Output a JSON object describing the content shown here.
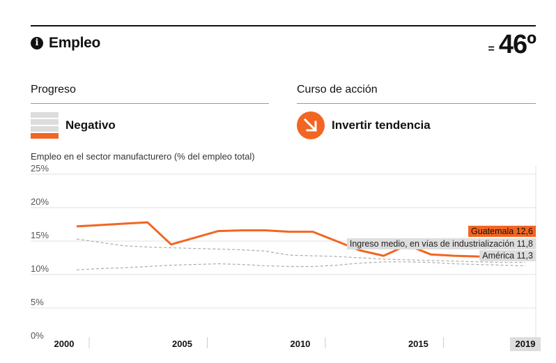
{
  "header": {
    "title": "Empleo",
    "info_icon": "info-icon",
    "rank_prefix": "=",
    "rank": "46º"
  },
  "progress": {
    "label": "Progreso",
    "value": "Negativo",
    "bars_total": 4,
    "bars_filled": 1
  },
  "action": {
    "label": "Curso de acción",
    "value": "Invertir tendencia",
    "icon": "arrow-down-right-icon"
  },
  "colors": {
    "accent": "#f26522",
    "reference": "#aaaaaa",
    "label_bg": "#dddddd"
  },
  "chart_data": {
    "type": "line",
    "title": "Empleo en el sector manufacturero (% del empleo total)",
    "ylim": [
      0,
      25
    ],
    "yticks": [
      0,
      5,
      10,
      15,
      20,
      25
    ],
    "ytick_labels": [
      "0%",
      "5%",
      "10%",
      "15%",
      "20%",
      "25%"
    ],
    "xlim": [
      2000,
      2019
    ],
    "xticks": [
      2000,
      2005,
      2010,
      2015,
      2019
    ],
    "xtick_labels": [
      "2000",
      "2005",
      "2010",
      "2015",
      "2019"
    ],
    "grid": true,
    "series": [
      {
        "name": "Guatemala",
        "label": "Guatemala 12,6",
        "style": "solid",
        "x": [
          2000,
          2001,
          2002,
          2003,
          2004,
          2005,
          2006,
          2007,
          2008,
          2009,
          2010,
          2011,
          2012,
          2013,
          2014,
          2015,
          2016,
          2017,
          2018,
          2019
        ],
        "values": [
          17.2,
          17.4,
          17.6,
          17.8,
          14.5,
          15.5,
          16.5,
          16.6,
          16.6,
          16.4,
          16.4,
          15.0,
          13.6,
          12.8,
          14.4,
          13.0,
          12.8,
          12.7,
          12.6,
          12.6
        ]
      },
      {
        "name": "Ingreso medio, en vías de industrialización",
        "label": "Ingreso medio, en vías de industrialización 11,8",
        "style": "dashed",
        "x": [
          2000,
          2001,
          2002,
          2003,
          2004,
          2005,
          2006,
          2007,
          2008,
          2009,
          2010,
          2011,
          2012,
          2013,
          2014,
          2015,
          2016,
          2017,
          2018,
          2019
        ],
        "values": [
          15.3,
          14.8,
          14.3,
          14.1,
          14.0,
          13.9,
          13.8,
          13.7,
          13.5,
          12.9,
          12.8,
          12.7,
          12.5,
          12.3,
          12.2,
          12.1,
          12.0,
          11.9,
          11.8,
          11.8
        ]
      },
      {
        "name": "América",
        "label": "América 11,3",
        "style": "dashed",
        "x": [
          2000,
          2001,
          2002,
          2003,
          2004,
          2005,
          2006,
          2007,
          2008,
          2009,
          2010,
          2011,
          2012,
          2013,
          2014,
          2015,
          2016,
          2017,
          2018,
          2019
        ],
        "values": [
          10.7,
          10.9,
          11.0,
          11.2,
          11.4,
          11.5,
          11.6,
          11.5,
          11.3,
          11.2,
          11.2,
          11.4,
          11.7,
          11.9,
          11.9,
          11.8,
          11.6,
          11.5,
          11.4,
          11.3
        ]
      }
    ]
  }
}
